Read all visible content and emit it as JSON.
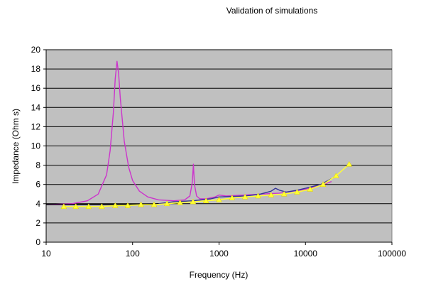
{
  "chart_data": {
    "type": "line",
    "title": "Validation of simulations",
    "xlabel": "Frequency (Hz)",
    "ylabel": "Impedance (Ohm s)",
    "x_scale": "log",
    "xlim": [
      10,
      100000
    ],
    "ylim": [
      0,
      20
    ],
    "x_ticks": [
      10,
      100,
      1000,
      10000,
      100000
    ],
    "x_tick_labels": [
      "10",
      "100",
      "1000",
      "10000",
      "100000"
    ],
    "y_ticks": [
      0,
      2,
      4,
      6,
      8,
      10,
      12,
      14,
      16,
      18,
      20
    ],
    "y_tick_labels": [
      "0",
      "2",
      "4",
      "6",
      "8",
      "10",
      "12",
      "14",
      "16",
      "18",
      "20"
    ],
    "grid": "horizontal",
    "legend": "none",
    "colors": {
      "plot_background": "#c0c0c0",
      "gridline": "#000000"
    },
    "series": [
      {
        "color": "#cc33cc",
        "marker": "none",
        "points": [
          [
            10,
            3.9
          ],
          [
            20,
            4.0
          ],
          [
            30,
            4.3
          ],
          [
            40,
            5.0
          ],
          [
            50,
            7.0
          ],
          [
            55,
            9.5
          ],
          [
            60,
            13.5
          ],
          [
            63,
            17.0
          ],
          [
            66,
            18.8
          ],
          [
            69,
            17.5
          ],
          [
            72,
            15.0
          ],
          [
            80,
            10.5
          ],
          [
            90,
            7.8
          ],
          [
            100,
            6.4
          ],
          [
            120,
            5.3
          ],
          [
            150,
            4.7
          ],
          [
            200,
            4.4
          ],
          [
            300,
            4.3
          ],
          [
            400,
            4.4
          ],
          [
            460,
            4.8
          ],
          [
            490,
            6.2
          ],
          [
            505,
            8.1
          ],
          [
            520,
            6.0
          ],
          [
            550,
            4.8
          ],
          [
            600,
            4.5
          ],
          [
            700,
            4.5
          ],
          [
            900,
            4.7
          ],
          [
            1000,
            4.9
          ],
          [
            1200,
            4.8
          ],
          [
            2000,
            4.9
          ],
          [
            5000,
            5.1
          ],
          [
            10000,
            5.5
          ],
          [
            15000,
            5.9
          ],
          [
            20000,
            6.3
          ]
        ]
      },
      {
        "color": "#333399",
        "marker": "none",
        "points": [
          [
            10,
            3.9
          ],
          [
            100,
            3.9
          ],
          [
            200,
            4.0
          ],
          [
            300,
            4.2
          ],
          [
            500,
            4.3
          ],
          [
            800,
            4.5
          ],
          [
            1000,
            4.7
          ],
          [
            2000,
            4.8
          ],
          [
            3000,
            5.0
          ],
          [
            4000,
            5.3
          ],
          [
            4500,
            5.6
          ],
          [
            5000,
            5.4
          ],
          [
            6000,
            5.2
          ],
          [
            8000,
            5.4
          ],
          [
            10000,
            5.6
          ],
          [
            15000,
            6.0
          ],
          [
            20000,
            6.6
          ]
        ]
      },
      {
        "color": "#000000",
        "marker": "none",
        "points": [
          [
            10,
            3.9
          ],
          [
            30,
            3.9
          ],
          [
            60,
            3.9
          ],
          [
            100,
            3.9
          ],
          [
            200,
            4.0
          ]
        ]
      },
      {
        "color": "#ffff33",
        "marker": "triangle",
        "points": [
          [
            16,
            3.7
          ],
          [
            22,
            3.7
          ],
          [
            31,
            3.7
          ],
          [
            44,
            3.7
          ],
          [
            63,
            3.8
          ],
          [
            88,
            3.8
          ],
          [
            125,
            3.9
          ],
          [
            177,
            3.9
          ],
          [
            250,
            4.0
          ],
          [
            354,
            4.1
          ],
          [
            500,
            4.2
          ],
          [
            707,
            4.3
          ],
          [
            1000,
            4.4
          ],
          [
            1414,
            4.6
          ],
          [
            2000,
            4.7
          ],
          [
            2828,
            4.8
          ],
          [
            4000,
            4.9
          ],
          [
            5657,
            5.0
          ],
          [
            8000,
            5.2
          ],
          [
            11314,
            5.5
          ],
          [
            16000,
            6.0
          ],
          [
            22627,
            6.9
          ],
          [
            32000,
            8.1
          ]
        ]
      }
    ]
  }
}
